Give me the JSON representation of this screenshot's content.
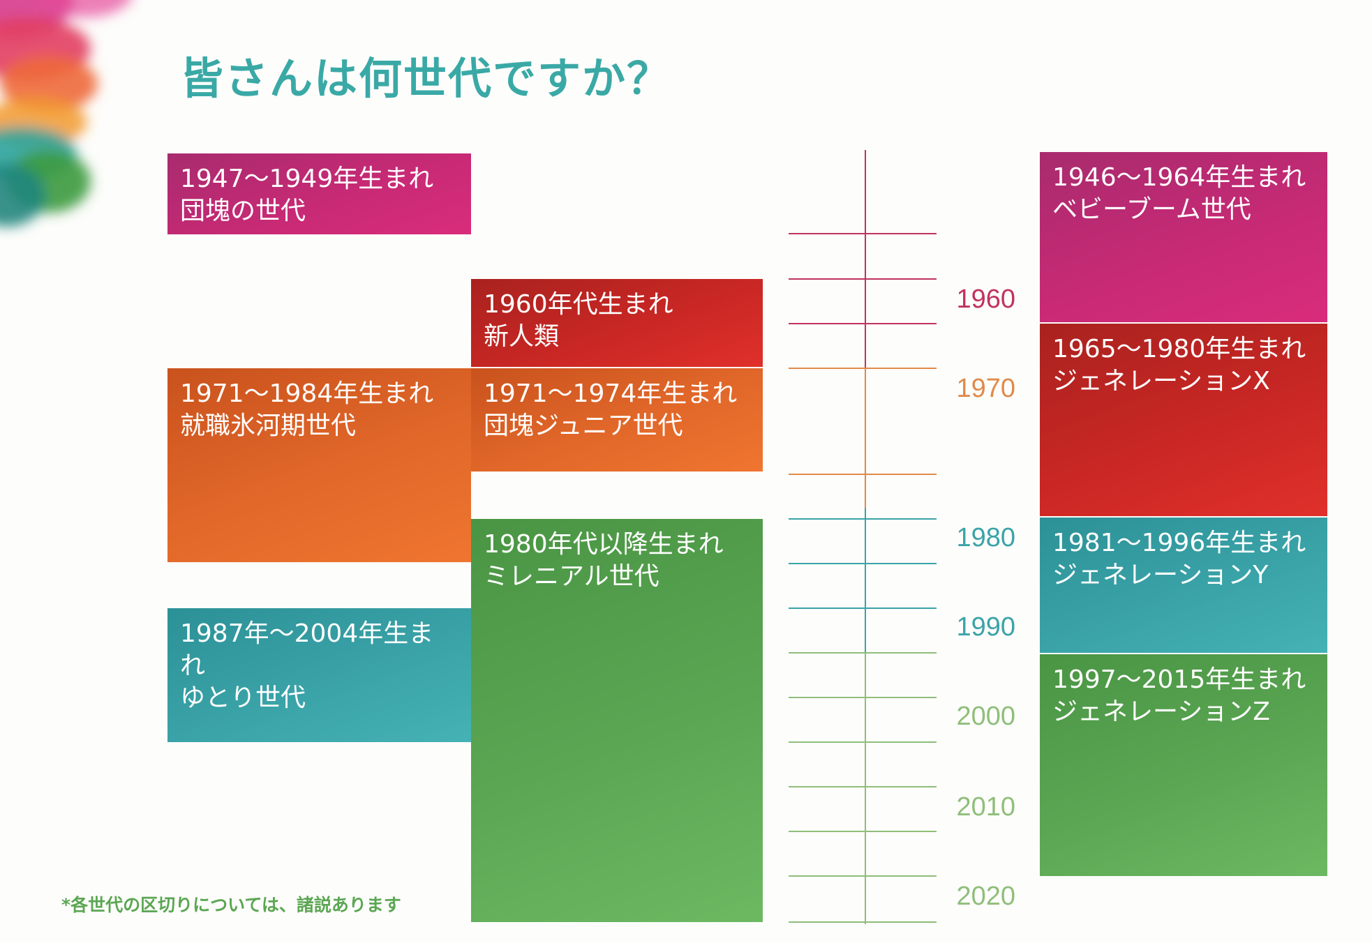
{
  "title": "皆さんは何世代ですか？",
  "footnote": "*各世代の区切りについては、諸説あります",
  "boxes": {
    "dankai": {
      "years": "1947〜1949年生まれ",
      "name": "団塊の世代",
      "color": "#c72a75"
    },
    "shinjinrui": {
      "years": "1960年代生まれ",
      "name": "新人類",
      "color": "#c92724"
    },
    "hyougaki": {
      "years": "1971〜1984年生まれ",
      "name": "就職氷河期世代",
      "color": "#e2682a"
    },
    "dankai_jr": {
      "years": "1971〜1974年生まれ",
      "name": "団塊ジュニア世代",
      "color": "#e2682a"
    },
    "millennial": {
      "years": "1980年代以降生まれ",
      "name": "ミレニアル世代",
      "color": "#5ba653"
    },
    "yutori": {
      "years": "1987年〜2004年生まれ",
      "name": "ゆとり世代",
      "color": "#3aa3a8"
    },
    "babyboom": {
      "years": "1946〜1964年生まれ",
      "name": "ベビーブーム世代",
      "color": "#c72a75"
    },
    "genx": {
      "years": "1965〜1980年生まれ",
      "name": "ジェネレーションX",
      "color": "#c92724"
    },
    "geny": {
      "years": "1981〜1996年生まれ",
      "name": "ジェネレーションY",
      "color": "#3aa3a8"
    },
    "genz": {
      "years": "1997〜2015年生まれ",
      "name": "ジェネレーションZ",
      "color": "#5ba653"
    }
  },
  "timeline": {
    "labels": [
      "1960",
      "1970",
      "1980",
      "1990",
      "2000",
      "2010",
      "2020"
    ],
    "label_colors": [
      "#c0335d",
      "#e08a4a",
      "#3aa3a8",
      "#3aa3a8",
      "#8fbe7a",
      "#8fbe7a",
      "#8fbe7a"
    ]
  }
}
